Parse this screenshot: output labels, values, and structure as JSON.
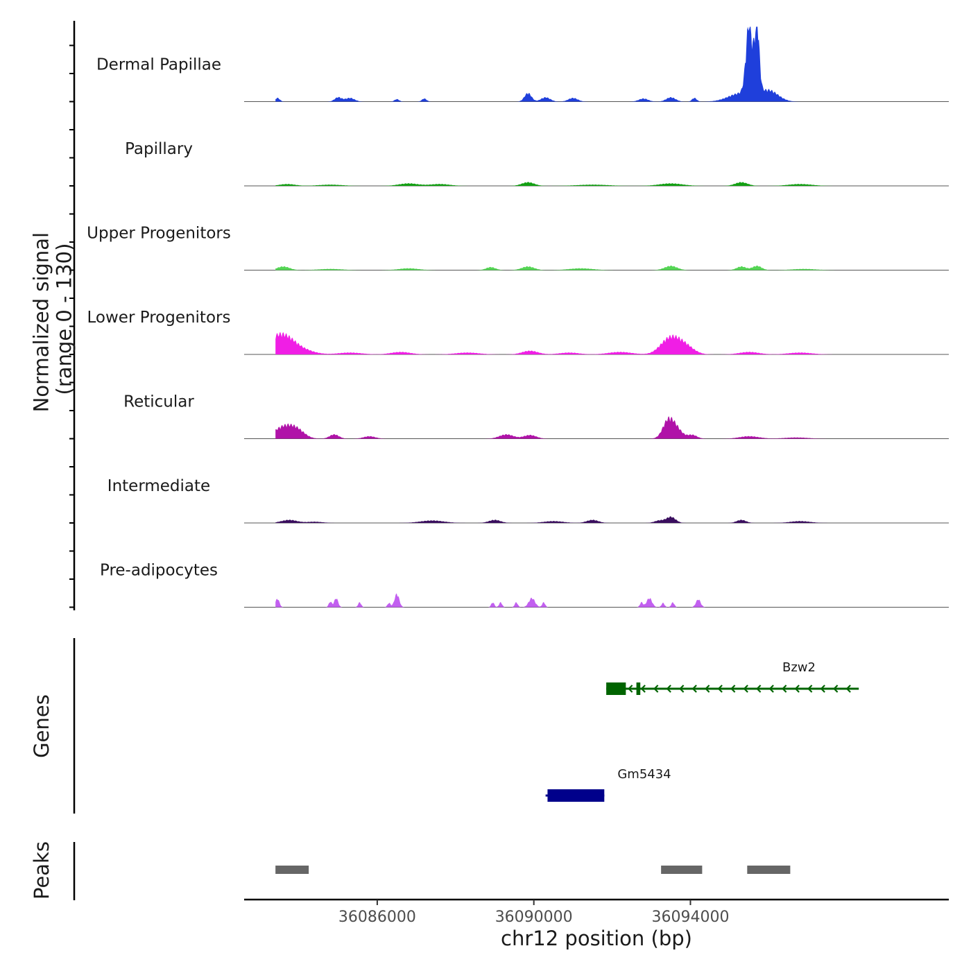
{
  "chart_data": {
    "type": "area",
    "title": "",
    "xlabel": "chr12 position (bp)",
    "ylabel": "Normalized signal\n(range 0 - 130)",
    "ylabel_lines": [
      "Normalized signal",
      "(range 0 - 130)"
    ],
    "y_range": [
      0,
      130
    ],
    "xlim": [
      36082600,
      36100600
    ],
    "x_ticks": [
      36086000,
      36090000,
      36094000
    ],
    "x_tick_labels": [
      "36086000",
      "36090000",
      "36094000"
    ],
    "data_start": 36083400,
    "data_end": 36098300,
    "tracks": [
      {
        "name": "Dermal Papillae",
        "color": "#1f3fdb",
        "peaks": [
          [
            36083450,
            6,
            60
          ],
          [
            36085000,
            7,
            90
          ],
          [
            36085300,
            6,
            120
          ],
          [
            36086500,
            4,
            60
          ],
          [
            36087200,
            5,
            60
          ],
          [
            36089850,
            14,
            90
          ],
          [
            36090300,
            7,
            120
          ],
          [
            36091000,
            6,
            120
          ],
          [
            36092800,
            5,
            120
          ],
          [
            36093500,
            7,
            120
          ],
          [
            36094100,
            6,
            60
          ],
          [
            36095300,
            14,
            320
          ],
          [
            36095500,
            118,
            80
          ],
          [
            36095700,
            115,
            60
          ],
          [
            36096000,
            18,
            240
          ]
        ]
      },
      {
        "name": "Papillary",
        "color": "#13a013",
        "peaks": [
          [
            36083700,
            3,
            200
          ],
          [
            36084800,
            2,
            300
          ],
          [
            36086800,
            4,
            250
          ],
          [
            36087600,
            3,
            250
          ],
          [
            36089850,
            6,
            160
          ],
          [
            36091500,
            2,
            400
          ],
          [
            36093500,
            4,
            300
          ],
          [
            36095300,
            6,
            160
          ],
          [
            36096800,
            3,
            300
          ]
        ]
      },
      {
        "name": "Upper Progenitors",
        "color": "#55d655",
        "peaks": [
          [
            36083600,
            6,
            160
          ],
          [
            36084800,
            2,
            300
          ],
          [
            36086800,
            3,
            250
          ],
          [
            36088900,
            5,
            120
          ],
          [
            36089850,
            6,
            160
          ],
          [
            36091200,
            3,
            300
          ],
          [
            36093500,
            7,
            160
          ],
          [
            36095300,
            6,
            120
          ],
          [
            36095700,
            7,
            120
          ],
          [
            36096900,
            2,
            300
          ]
        ]
      },
      {
        "name": "Lower Progenitors",
        "color": "#f01ee5",
        "peaks": [
          [
            36083550,
            34,
            350
          ],
          [
            36084250,
            3,
            250
          ],
          [
            36085300,
            3,
            300
          ],
          [
            36086600,
            4,
            250
          ],
          [
            36088300,
            3,
            300
          ],
          [
            36089900,
            6,
            200
          ],
          [
            36090900,
            3,
            250
          ],
          [
            36092200,
            4,
            300
          ],
          [
            36093400,
            14,
            220
          ],
          [
            36093650,
            20,
            260
          ],
          [
            36093950,
            5,
            200
          ],
          [
            36095500,
            4,
            250
          ],
          [
            36096800,
            3,
            300
          ]
        ]
      },
      {
        "name": "Reticular",
        "color": "#b012a8",
        "peaks": [
          [
            36083600,
            19,
            250
          ],
          [
            36083950,
            12,
            200
          ],
          [
            36084900,
            7,
            120
          ],
          [
            36085800,
            4,
            150
          ],
          [
            36089300,
            7,
            180
          ],
          [
            36089900,
            6,
            160
          ],
          [
            36093400,
            14,
            120
          ],
          [
            36093550,
            25,
            180
          ],
          [
            36094050,
            6,
            120
          ],
          [
            36095500,
            4,
            250
          ],
          [
            36096700,
            2,
            300
          ]
        ]
      },
      {
        "name": "Intermediate",
        "color": "#3a0e5e",
        "peaks": [
          [
            36083750,
            5,
            200
          ],
          [
            36084400,
            2,
            200
          ],
          [
            36087400,
            4,
            300
          ],
          [
            36089000,
            5,
            150
          ],
          [
            36090500,
            3,
            250
          ],
          [
            36091500,
            5,
            150
          ],
          [
            36093200,
            4,
            120
          ],
          [
            36093500,
            10,
            120
          ],
          [
            36095300,
            5,
            120
          ],
          [
            36096800,
            3,
            250
          ]
        ]
      },
      {
        "name": "Pre-adipocytes",
        "color": "#c25ff0",
        "peaks": [
          [
            36083450,
            14,
            50
          ],
          [
            36084800,
            9,
            40
          ],
          [
            36084950,
            15,
            50
          ],
          [
            36085550,
            8,
            40
          ],
          [
            36086300,
            7,
            40
          ],
          [
            36086500,
            22,
            60
          ],
          [
            36088950,
            8,
            40
          ],
          [
            36089150,
            8,
            40
          ],
          [
            36089550,
            8,
            40
          ],
          [
            36089950,
            15,
            80
          ],
          [
            36090250,
            8,
            40
          ],
          [
            36092750,
            8,
            40
          ],
          [
            36092950,
            15,
            70
          ],
          [
            36093300,
            7,
            40
          ],
          [
            36093550,
            8,
            40
          ],
          [
            36094200,
            13,
            60
          ]
        ]
      }
    ],
    "genes_label": "Genes",
    "genes": [
      {
        "name": "Bzw2",
        "color": "#006400",
        "strand": "-",
        "start": 36091850,
        "end": 36098300,
        "exons": [
          [
            36091850,
            36092350
          ],
          [
            36092620,
            36092720
          ]
        ]
      },
      {
        "name": "Gm5434",
        "color": "#00008b",
        "strand": "-",
        "start": 36090300,
        "end": 36091800,
        "exons": [
          [
            36090350,
            36091800
          ]
        ]
      }
    ],
    "peaks_label": "Peaks",
    "peak_regions": [
      [
        36083400,
        36084250
      ],
      [
        36093250,
        36094300
      ],
      [
        36095450,
        36096550
      ]
    ]
  }
}
